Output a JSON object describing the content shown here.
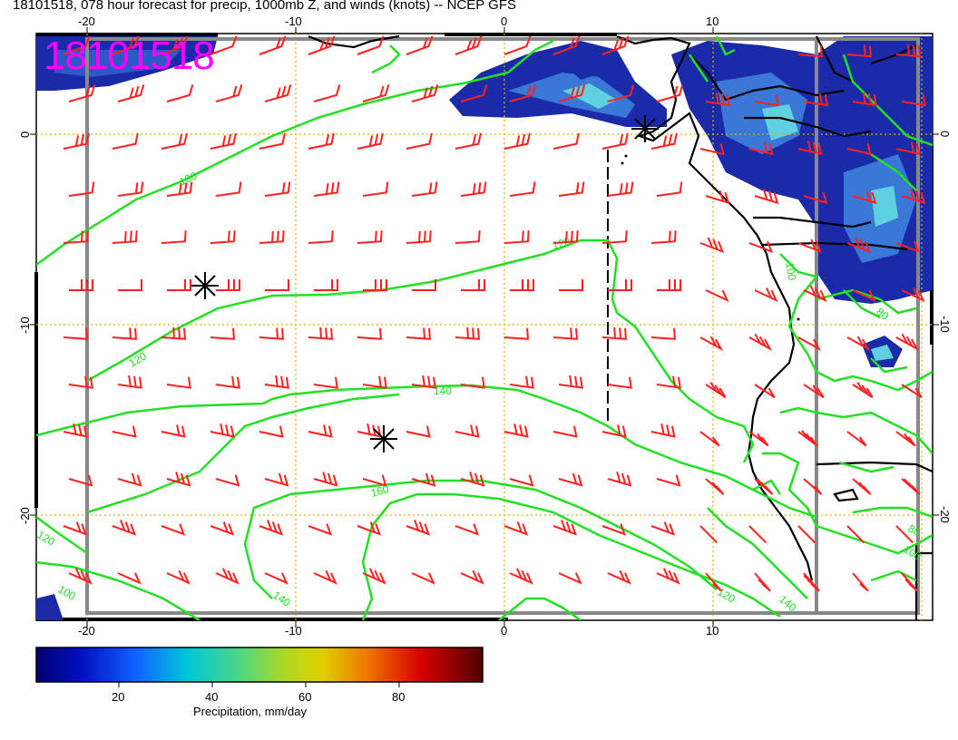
{
  "title": "18101518, 078 hour forecast for precip, 1000mb Z, and winds (knots) -- NCEP GFS",
  "stamp": "18101518",
  "axes": {
    "top_ticks": [
      "-20",
      "-10",
      "0",
      "10"
    ],
    "bottom_ticks": [
      "-20",
      "-10",
      "0",
      "10"
    ],
    "left_ticks": [
      "0",
      "-10",
      "-20"
    ],
    "right_ticks": [
      "0",
      "-10",
      "-20"
    ]
  },
  "contours": {
    "color": "#22e022",
    "labels": [
      "100",
      "120",
      "120",
      "140",
      "160",
      "140",
      "120",
      "140",
      "100",
      "80",
      "100",
      "80",
      "100",
      "120"
    ]
  },
  "colorbar": {
    "ticks": [
      "20",
      "40",
      "60",
      "80"
    ],
    "label": "Precipitation, mm/day",
    "colors": [
      "#00008b",
      "#0033ff",
      "#00ccdd",
      "#88dd44",
      "#dddd00",
      "#ee7700",
      "#cc0000",
      "#660000"
    ]
  },
  "colors": {
    "wind_barbs": "#ff2020",
    "coastline": "#000000",
    "gridlines": "#ddb200",
    "precip_dark": "#1a2aa8",
    "precip_mid": "#3a78d8",
    "precip_light": "#5fd0e0"
  }
}
